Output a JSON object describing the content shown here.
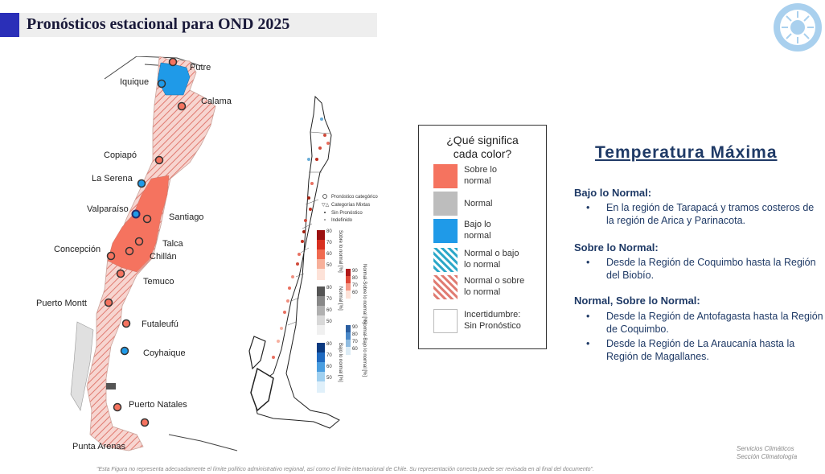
{
  "header": {
    "title": "Pronósticos estacional para OND 2025"
  },
  "logo": {
    "icon": "sun-emblem-icon",
    "color": "#9cc8ea"
  },
  "map_main": {
    "cities": [
      "Putre",
      "Iquique",
      "Calama",
      "Copiapó",
      "La Serena",
      "Valparaíso",
      "Santiago",
      "Talca",
      "Concepción",
      "Chillán",
      "Temuco",
      "Puerto Montt",
      "Futaleufú",
      "Coyhaique",
      "Puerto Natales",
      "Punta Arenas"
    ]
  },
  "map_detail": {
    "legend": {
      "categorical": "Pronóstico categórico",
      "mixed": "Categorías Mixtas",
      "none": "Sin Pronóstico",
      "undefined": "Indefinido"
    },
    "colorbar_ticks": [
      "80",
      "70",
      "60",
      "50"
    ],
    "colorbar_ticks_small": [
      "90",
      "80",
      "70",
      "60"
    ],
    "colorbar_labels": {
      "above": "Sobre lo normal [%]",
      "normal": "Normal [%]",
      "below": "Bajo lo normal [%]",
      "mixed_above": "Normal-Sobre lo normal [%]",
      "mixed_below": "Normal-Bajo lo normal [%]"
    }
  },
  "legend": {
    "title_line1": "¿Qué significa",
    "title_line2": "cada color?",
    "items": [
      {
        "line1": "Sobre lo",
        "line2": "normal",
        "color": "#f5735f"
      },
      {
        "line1": "Normal",
        "line2": "",
        "color": "#bdbdbd"
      },
      {
        "line1": "Bajo lo",
        "line2": "normal",
        "color": "#1f9ae8"
      },
      {
        "line1": "Normal o bajo",
        "line2": "lo normal",
        "color": "#2aa7c8"
      },
      {
        "line1": "Normal o sobre",
        "line2": "lo normal",
        "color": "#e07a70"
      },
      {
        "line1": "Incertidumbre:",
        "line2": "Sin Pronóstico",
        "color": "#ffffff"
      }
    ]
  },
  "panel": {
    "title": "Temperatura Máxima",
    "sections": [
      {
        "heading": "Bajo lo Normal:",
        "bullets": [
          "En la región de Tarapacá y tramos costeros de la región de Arica y Parinacota."
        ]
      },
      {
        "heading": "Sobre lo Normal:",
        "bullets": [
          "Desde la Región de Coquimbo hasta la Región del Biobío."
        ]
      },
      {
        "heading": "Normal, Sobre lo Normal:",
        "bullets": [
          "Desde la Región de Antofagasta hasta la Región de Coquimbo.",
          "Desde la Región de La Araucanía hasta la Región de Magallanes."
        ]
      }
    ]
  },
  "credit": {
    "line1": "Servicios Climáticos",
    "line2": "Sección Climatología"
  },
  "footnote": "\"Esta Figura no representa adecuadamente el límite político administrativo regional, así como el límite internacional de Chile. Su representación correcta puede ser revisada en al final del documento\"."
}
